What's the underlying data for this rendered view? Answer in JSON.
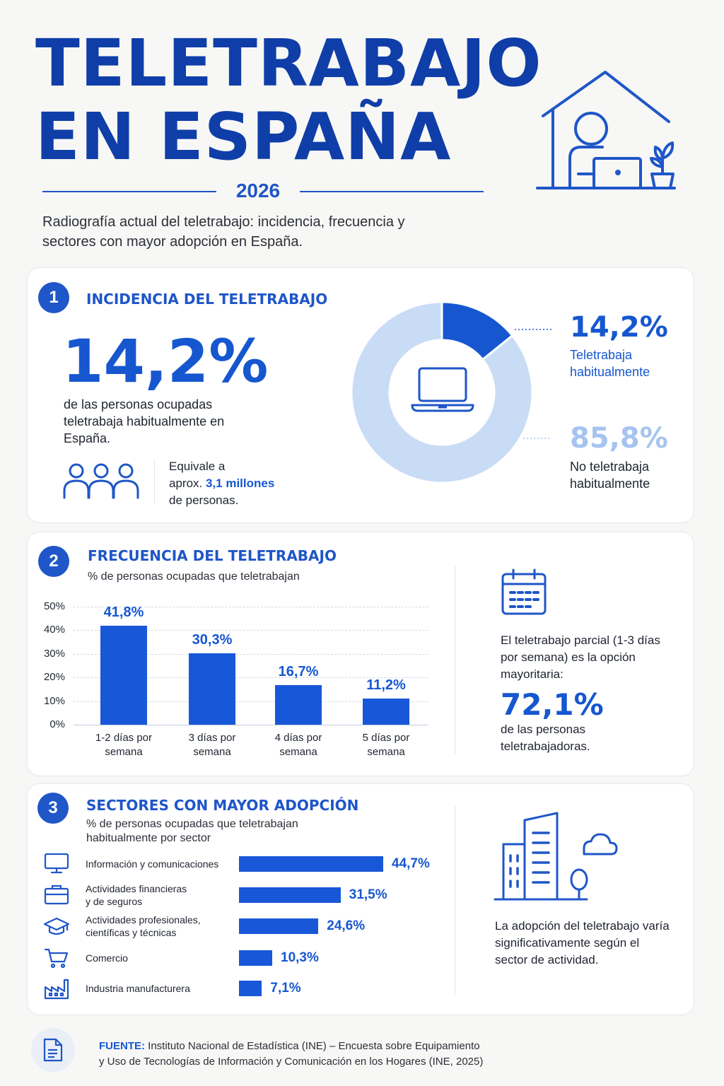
{
  "header": {
    "title_line1": "TELETRABAJO",
    "title_line2": "EN ESPAÑA",
    "year": "2026",
    "subtitle": "Radiografía actual del teletrabajo: incidencia, frecuencia y sectores con mayor adopción en España."
  },
  "section1": {
    "number": "1",
    "title": "INCIDENCIA DEL TELETRABAJO",
    "big_value": "14,2%",
    "big_desc": "de las personas ocupadas teletrabaja habitualmente en España.",
    "equiv_pre": "Equivale a",
    "equiv_mid": "aprox.",
    "equiv_value": "3,1 millones",
    "equiv_post": "de personas.",
    "donut": {
      "slices": [
        {
          "label": "Teletrabaja habitualmente",
          "value": 14.2,
          "display": "14,2%",
          "color": "#1657d0"
        },
        {
          "label": "No teletrabaja habitualmente",
          "value": 85.8,
          "display": "85,8%",
          "color": "#c9dcf6"
        }
      ]
    }
  },
  "section2": {
    "number": "2",
    "title": "FRECUENCIA DEL TELETRABAJO",
    "subtitle": "% de personas ocupadas que teletrabajan",
    "side_text": "El teletrabajo parcial (1-3 días por semana) es la opción mayoritaria:",
    "side_value": "72,1%",
    "side_post": "de las personas teletrabajadoras."
  },
  "section3": {
    "number": "3",
    "title": "SECTORES CON MAYOR ADOPCIÓN",
    "subtitle_line1": "% de personas ocupadas que teletrabajan",
    "subtitle_line2": "habitualmente por sector",
    "side_text": "La adopción del teletrabajo varía significativamente según el sector de actividad.",
    "icons": [
      "monitor-icon",
      "briefcase-icon",
      "graduation-cap-icon",
      "shopping-cart-icon",
      "factory-icon"
    ]
  },
  "footer": {
    "label": "FUENTE:",
    "line1": "Instituto Nacional de Estadística (INE) – Encuesta sobre Equipamiento",
    "line2": "y Uso de Tecnologías de Información y Comunicación en los Hogares (INE, 2025)"
  },
  "chart_data": [
    {
      "type": "pie",
      "categories": [
        "Teletrabaja habitualmente",
        "No teletrabaja habitualmente"
      ],
      "values": [
        14.2,
        85.8
      ]
    },
    {
      "type": "bar",
      "categories": [
        "1-2 días por semana",
        "3 días por semana",
        "4 días por semana",
        "5 días por semana"
      ],
      "category_lines": [
        [
          "1-2 días por",
          "semana"
        ],
        [
          "3 días por",
          "semana"
        ],
        [
          "4 días por",
          "semana"
        ],
        [
          "5 días por",
          "semana"
        ]
      ],
      "values": [
        41.8,
        30.3,
        16.7,
        11.2
      ],
      "labels": [
        "41,8%",
        "30,3%",
        "16,7%",
        "11,2%"
      ],
      "yticks": [
        "50%",
        "40%",
        "30%",
        "20%",
        "10%",
        "0%"
      ],
      "ylim": [
        0,
        50
      ],
      "grid": true
    },
    {
      "type": "bar",
      "orientation": "horizontal",
      "categories": [
        "Información y comunicaciones",
        "Actividades financieras y de seguros",
        "Actividades profesionales, científicas y técnicas",
        "Comercio",
        "Industria manufacturera"
      ],
      "category_lines": [
        [
          "Información y comunicaciones"
        ],
        [
          "Actividades financieras",
          "y de seguros"
        ],
        [
          "Actividades profesionales,",
          "científicas y técnicas"
        ],
        [
          "Comercio"
        ],
        [
          "Industria manufacturera"
        ]
      ],
      "values": [
        44.7,
        31.5,
        24.6,
        10.3,
        7.1
      ],
      "labels": [
        "44,7%",
        "31,5%",
        "24,6%",
        "10,3%",
        "7,1%"
      ]
    }
  ]
}
